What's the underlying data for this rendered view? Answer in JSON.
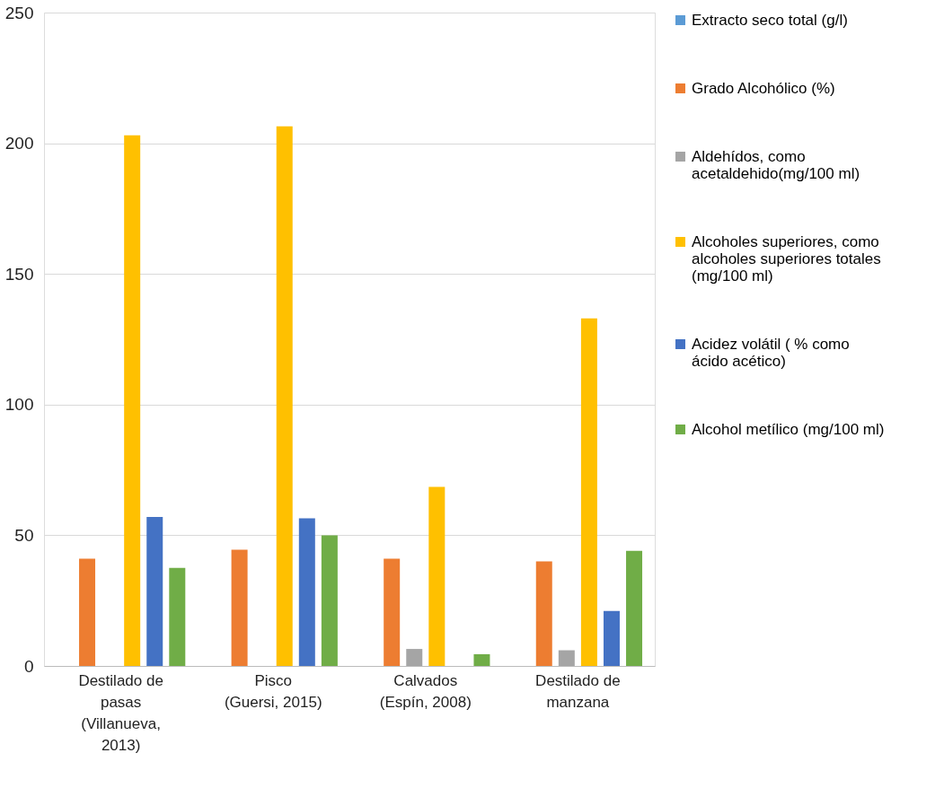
{
  "chart_data": {
    "type": "bar",
    "categories": [
      "Destilado de pasas (Villanueva, 2013)",
      "Pisco  (Guersi, 2015)",
      "Calvados (Espín, 2008)",
      "Destilado de manzana"
    ],
    "series": [
      {
        "name": "Extracto seco total (g/l)",
        "color": "#5b9bd5",
        "values": [
          null,
          null,
          null,
          null
        ]
      },
      {
        "name": "Grado Alcohólico (%)",
        "color": "#ed7d31",
        "values": [
          41,
          44.5,
          41,
          40
        ]
      },
      {
        "name": "Aldehídos, como acetaldehido(mg/100 ml)",
        "color": "#a5a5a5",
        "values": [
          null,
          null,
          6.5,
          6
        ]
      },
      {
        "name": "Alcoholes superiores, como alcoholes superiores totales (mg/100 ml)",
        "color": "#ffc000",
        "values": [
          203,
          206.5,
          68.5,
          133
        ]
      },
      {
        "name": "Acidez volátil ( % como ácido acético)",
        "color": "#4472c4",
        "values": [
          57,
          56.5,
          null,
          21
        ]
      },
      {
        "name": "Alcohol metílico (mg/100 ml)",
        "color": "#70ad47",
        "values": [
          37.5,
          50,
          4.5,
          44
        ]
      }
    ],
    "ylim": [
      0,
      250
    ],
    "yticks": [
      0,
      50,
      100,
      150,
      200,
      250
    ],
    "grid": "y",
    "legend": "right"
  }
}
